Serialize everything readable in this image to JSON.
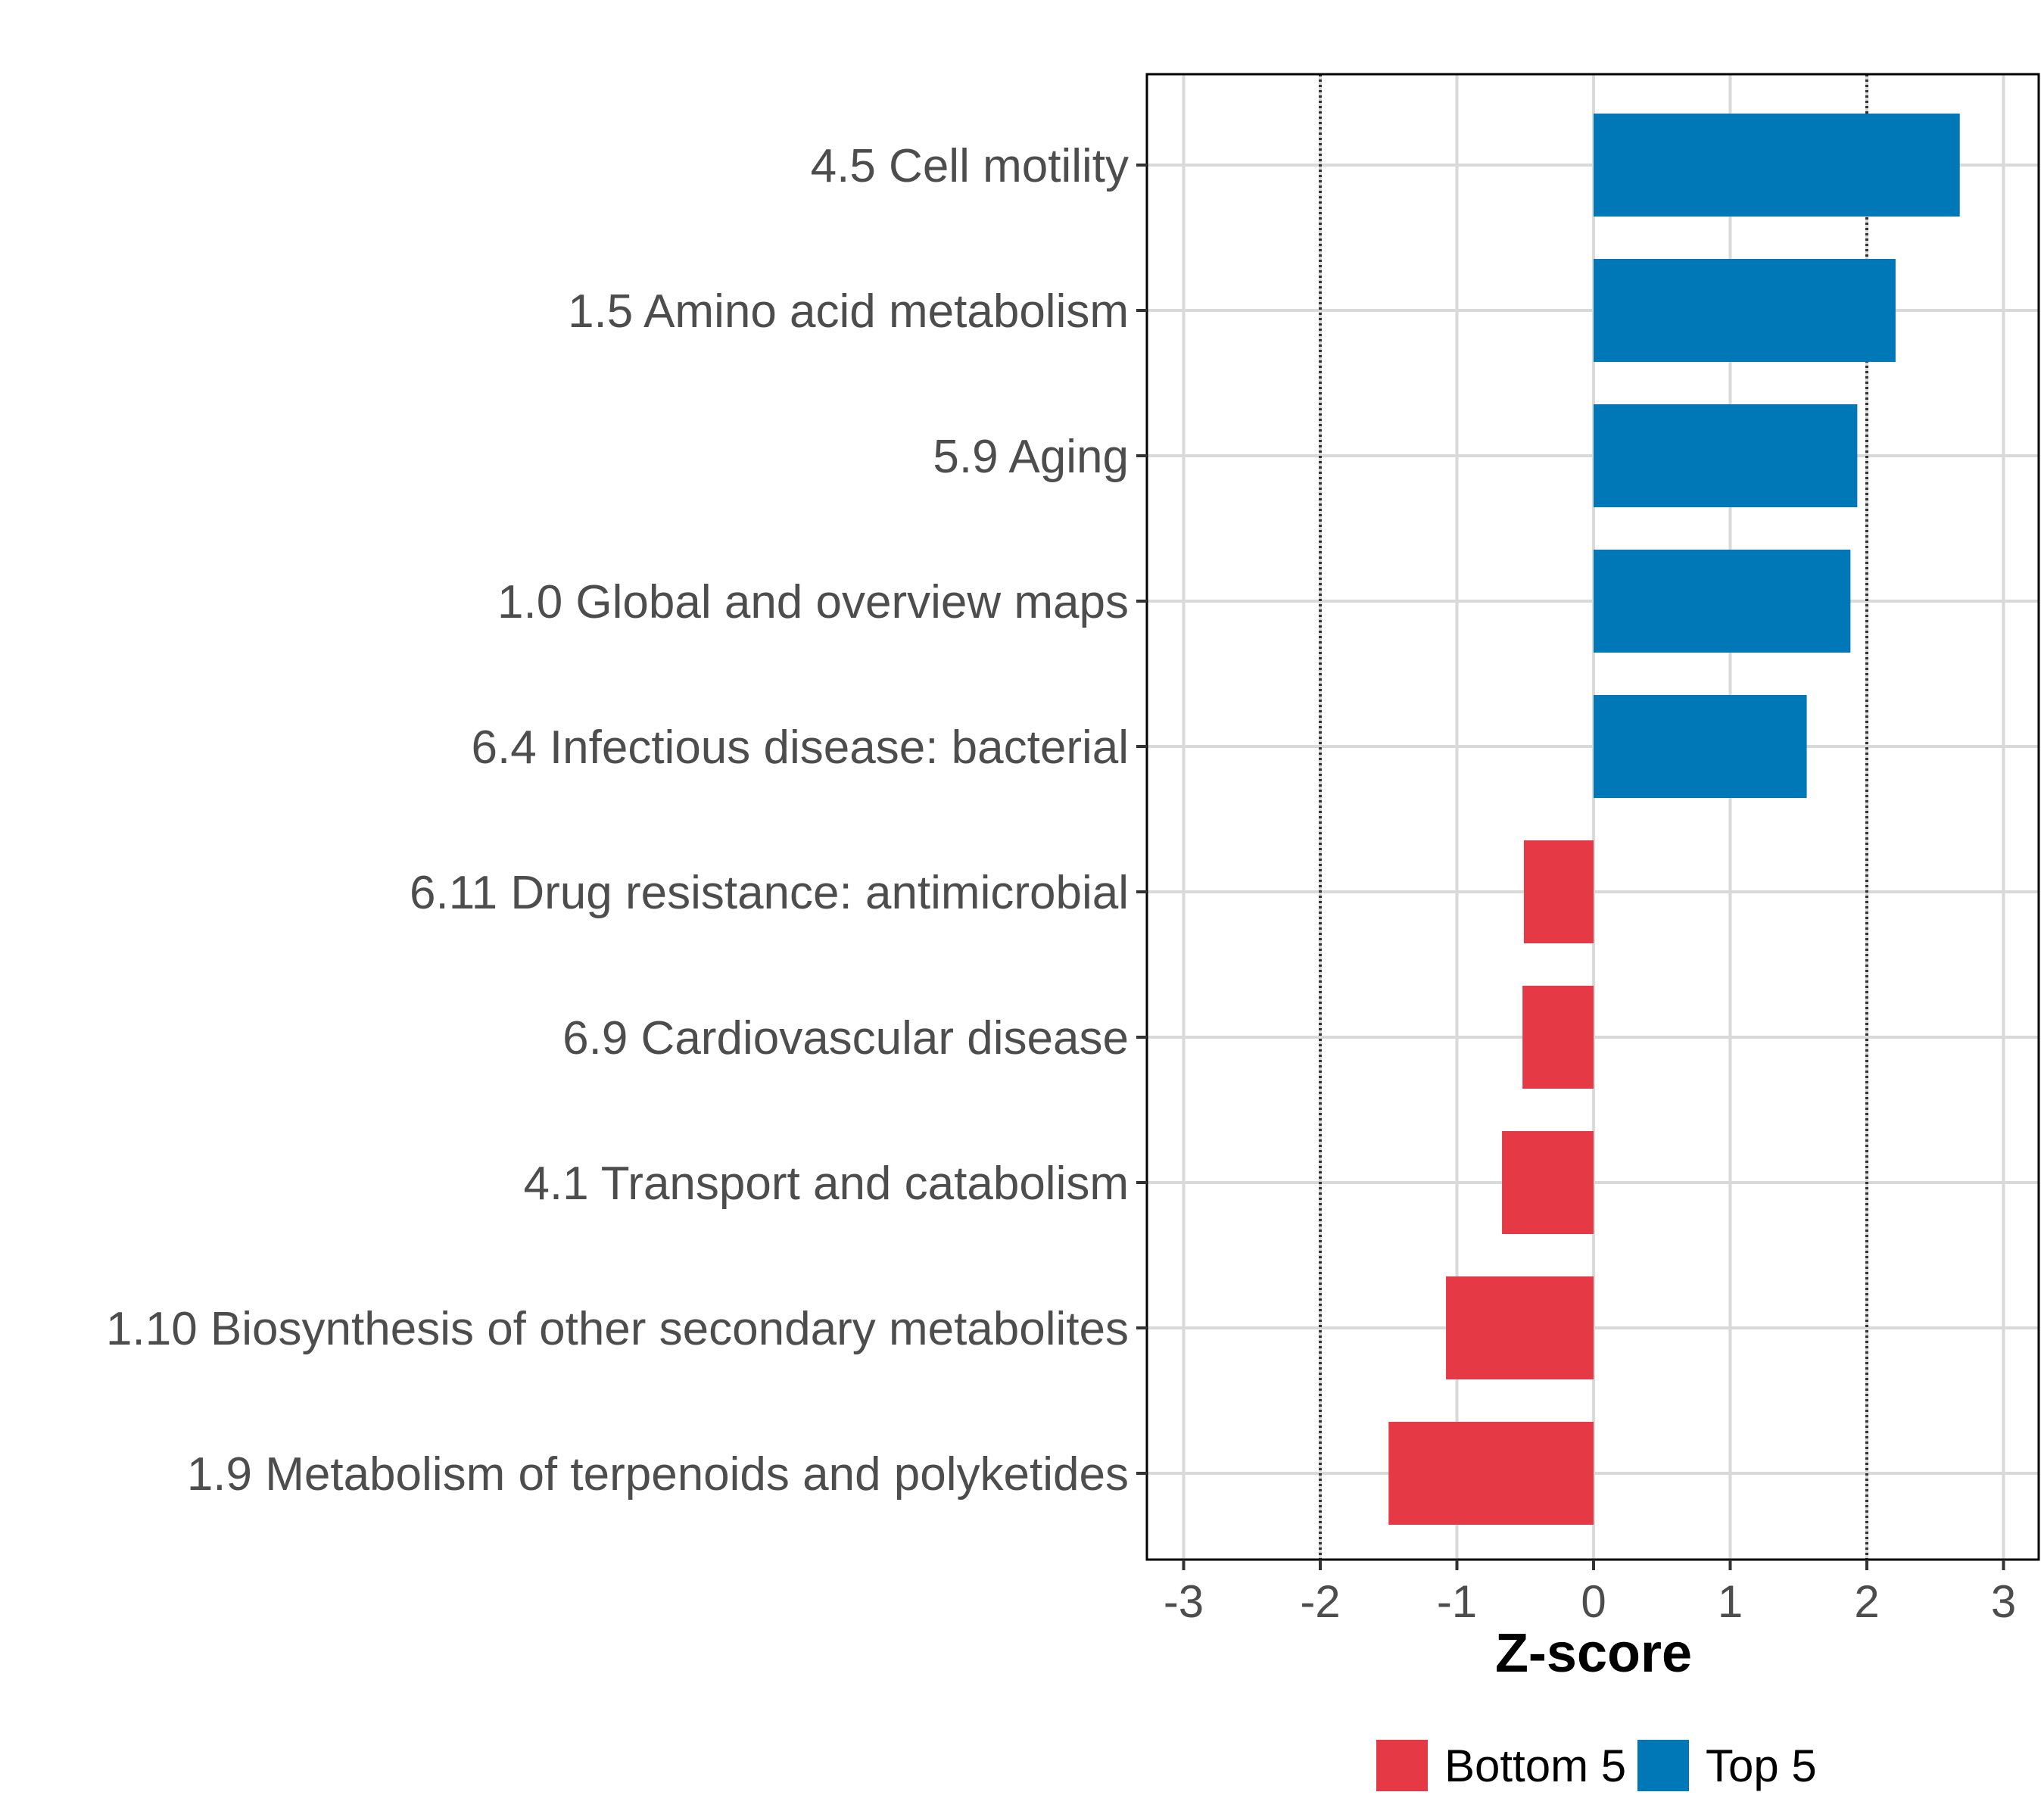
{
  "chart_data": {
    "type": "bar",
    "orientation": "horizontal",
    "title": "",
    "xlabel": "Z-score",
    "ylabel": "",
    "xlim": [
      -3.3,
      3.3
    ],
    "xticks": [
      -3,
      -2,
      -1,
      0,
      1,
      2,
      3
    ],
    "xtick_labels": [
      "-3",
      "-2",
      "-1",
      "0",
      "1",
      "2",
      "3"
    ],
    "reference_lines": [
      -2,
      2
    ],
    "grid": true,
    "categories": [
      "4.5 Cell motility",
      "1.5 Amino acid metabolism",
      "5.9 Aging",
      "1.0 Global and overview maps",
      "6.4 Infectious disease: bacterial",
      "6.11 Drug resistance: antimicrobial",
      "6.9 Cardiovascular disease",
      "4.1 Transport and catabolism",
      "1.10 Biosynthesis of other secondary metabolites",
      "1.9 Metabolism of terpenoids and polyketides"
    ],
    "values": [
      2.68,
      2.21,
      1.93,
      1.88,
      1.56,
      -0.51,
      -0.52,
      -0.67,
      -1.08,
      -1.5
    ],
    "groups": [
      "Top 5",
      "Top 5",
      "Top 5",
      "Top 5",
      "Top 5",
      "Bottom 5",
      "Bottom 5",
      "Bottom 5",
      "Bottom 5",
      "Bottom 5"
    ],
    "legend": {
      "position": "bottom",
      "entries": [
        {
          "label": "Bottom 5",
          "color": "#E63946"
        },
        {
          "label": "Top 5",
          "color": "#0077B6"
        }
      ]
    },
    "colors": {
      "Top 5": "#0077B6",
      "Bottom 5": "#E63946"
    }
  }
}
